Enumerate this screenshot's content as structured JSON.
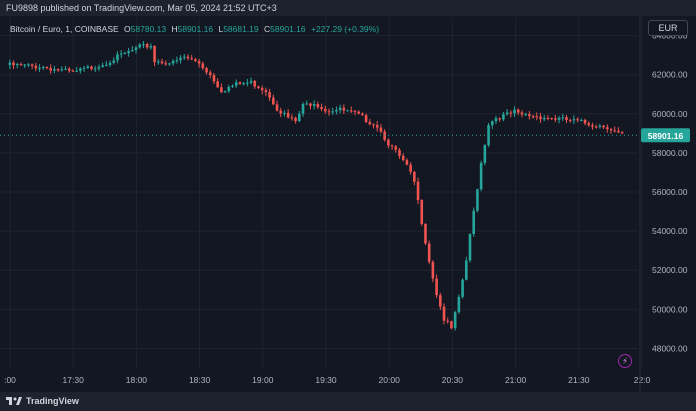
{
  "header": {
    "published": "FU9898 published on TradingView.com, Mar 05, 2024 21:52 UTC+3"
  },
  "legend": {
    "symbol": "Bitcoin / Euro, 1, COINBASE",
    "o_label": "O",
    "o_value": "58780.13",
    "h_label": "H",
    "h_value": "58901.16",
    "l_label": "L",
    "l_value": "58681.19",
    "c_label": "C",
    "c_value": "58901.16",
    "change": "+227.29 (+0.39%)"
  },
  "currency_button": "EUR",
  "footer": {
    "brand": "TradingView",
    "brand_icon": "tradingview-logo-icon"
  },
  "bolt_icon": "lightning-icon",
  "colors": {
    "up": "#26a69a",
    "down": "#ef5350",
    "background": "#131722",
    "grid": "#1f2330",
    "last_price_bg": "#26a69a"
  },
  "chart_data": {
    "type": "candlestick",
    "ylim": [
      47000,
      64900
    ],
    "y_ticks": [
      "64000.00",
      "62000.00",
      "60000.00",
      "58000.00",
      "56000.00",
      "54000.00",
      "52000.00",
      "50000.00",
      "48000.00"
    ],
    "x_ticks": [
      ":00",
      "17:30",
      "18:00",
      "18:30",
      "19:00",
      "19:30",
      "20:00",
      "20:30",
      "21:00",
      "21:30",
      "22:0"
    ],
    "last_price": "58901.16",
    "close_path": [
      [
        0,
        62500
      ],
      [
        10,
        62400
      ],
      [
        18,
        62100
      ],
      [
        26,
        62550
      ],
      [
        30,
        62900
      ],
      [
        36,
        63400
      ],
      [
        39,
        63500
      ],
      [
        40,
        62700
      ],
      [
        45,
        62600
      ],
      [
        48,
        62900
      ],
      [
        52,
        62600
      ],
      [
        55,
        62000
      ],
      [
        58,
        61200
      ],
      [
        62,
        61500
      ],
      [
        66,
        61600
      ],
      [
        70,
        61200
      ],
      [
        73,
        60300
      ],
      [
        76,
        59800
      ],
      [
        78,
        59600
      ],
      [
        80,
        60400
      ],
      [
        83,
        60600
      ],
      [
        86,
        60200
      ],
      [
        90,
        60200
      ],
      [
        94,
        60000
      ],
      [
        97,
        59700
      ],
      [
        100,
        59400
      ],
      [
        103,
        58500
      ],
      [
        106,
        57800
      ],
      [
        108,
        57300
      ],
      [
        110,
        56500
      ],
      [
        112,
        54500
      ],
      [
        114,
        52500
      ],
      [
        116,
        50800
      ],
      [
        118,
        49500
      ],
      [
        120,
        49000
      ],
      [
        122,
        50500
      ],
      [
        124,
        52500
      ],
      [
        126,
        55000
      ],
      [
        128,
        57500
      ],
      [
        130,
        59500
      ],
      [
        132,
        59800
      ],
      [
        134,
        59900
      ],
      [
        136,
        60000
      ],
      [
        137,
        60100
      ],
      [
        138,
        59950
      ],
      [
        142,
        59900
      ],
      [
        146,
        59800
      ],
      [
        150,
        59700
      ],
      [
        154,
        59600
      ],
      [
        158,
        59450
      ],
      [
        162,
        59350
      ],
      [
        164,
        59100
      ],
      [
        166,
        58900
      ]
    ]
  }
}
